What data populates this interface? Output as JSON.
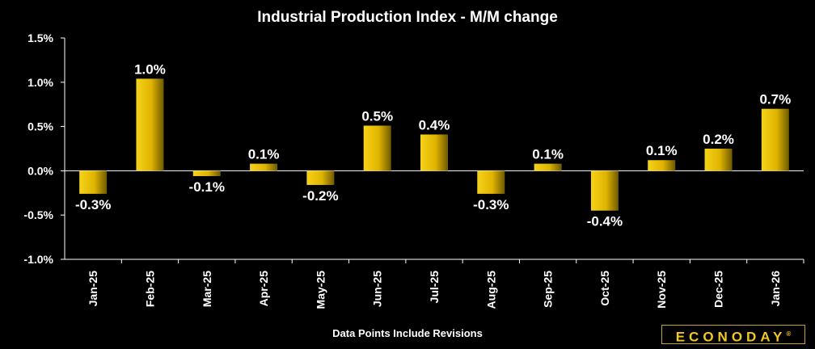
{
  "chart_data": {
    "type": "bar",
    "title": "Industrial Production Index - M/M change",
    "categories": [
      "Jan-25",
      "Feb-25",
      "Mar-25",
      "Apr-25",
      "May-25",
      "Jun-25",
      "Jul-25",
      "Aug-25",
      "Sep-25",
      "Oct-25",
      "Nov-25",
      "Dec-25",
      "Jan-26"
    ],
    "values": [
      -0.26,
      1.04,
      -0.06,
      0.08,
      -0.16,
      0.51,
      0.41,
      -0.26,
      0.08,
      -0.45,
      0.12,
      0.25,
      0.7
    ],
    "value_labels": [
      "-0.3%",
      "1.0%",
      "-0.1%",
      "0.1%",
      "-0.2%",
      "0.5%",
      "0.4%",
      "-0.3%",
      "0.1%",
      "-0.4%",
      "0.1%",
      "0.2%",
      "0.7%"
    ],
    "ylim": [
      -1.0,
      1.5
    ],
    "yticks": [
      1.5,
      1.0,
      0.5,
      0.0,
      -0.5,
      -1.0
    ],
    "ytick_labels": [
      "1.5%",
      "1.0%",
      "0.5%",
      "0.0%",
      "-0.5%",
      "-1.0%"
    ],
    "xlabel": "",
    "ylabel": "",
    "bar_color_light": "#f6d21a",
    "bar_color_dark": "#6e5a00",
    "grid": false
  },
  "footer": {
    "note": "Data Points Include Revisions",
    "brand": "ECONODAY",
    "brand_mark": "®"
  }
}
